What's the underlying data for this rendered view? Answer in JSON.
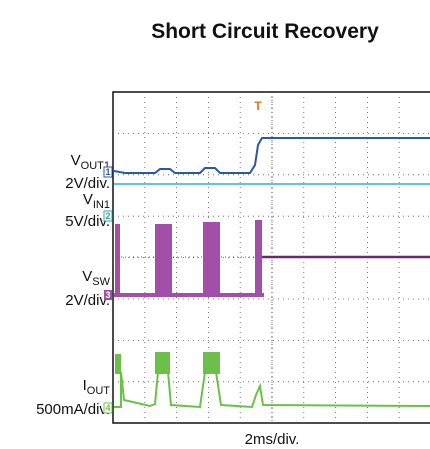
{
  "title": "Short Circuit Recovery",
  "channels": [
    {
      "symbol": "V",
      "subscript": "OUT1",
      "scale": "2V/div.",
      "marker": "1"
    },
    {
      "symbol": "V",
      "subscript": "IN1",
      "scale": "5V/div.",
      "marker": "2"
    },
    {
      "symbol": "V",
      "subscript": "SW",
      "scale": "2V/div.",
      "marker": "3"
    },
    {
      "symbol": "I",
      "subscript": "OUT",
      "scale": "500mA/div.",
      "marker": "4"
    }
  ],
  "trigger": "T",
  "timebase": "2ms/div."
}
